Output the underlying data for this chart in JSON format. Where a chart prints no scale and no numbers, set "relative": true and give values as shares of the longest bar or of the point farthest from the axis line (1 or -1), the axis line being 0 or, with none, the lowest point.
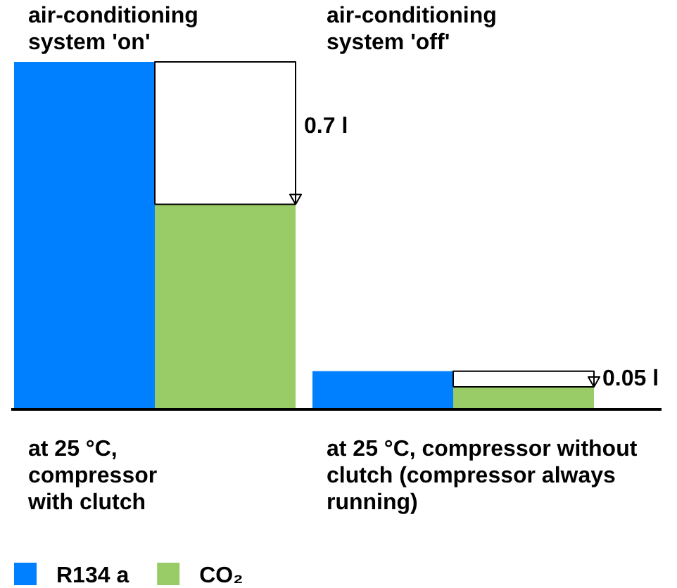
{
  "chart_data": {
    "type": "bar",
    "relative": true,
    "categories": [
      "at 25 °C, compressor with clutch",
      "at 25 °C, compressor without clutch (compressor always running)"
    ],
    "series": [
      {
        "name": "R134 a",
        "color": "#0080ff",
        "values": [
          1,
          0.11
        ]
      },
      {
        "name": "CO₂",
        "color": "#99cc66",
        "values": [
          0.59,
          0.065
        ]
      }
    ],
    "annotations": [
      "air-conditioning system 'on'",
      "air-conditioning system 'off'",
      "0.7 l",
      "0.05 l"
    ],
    "legend": "bottom left"
  }
}
